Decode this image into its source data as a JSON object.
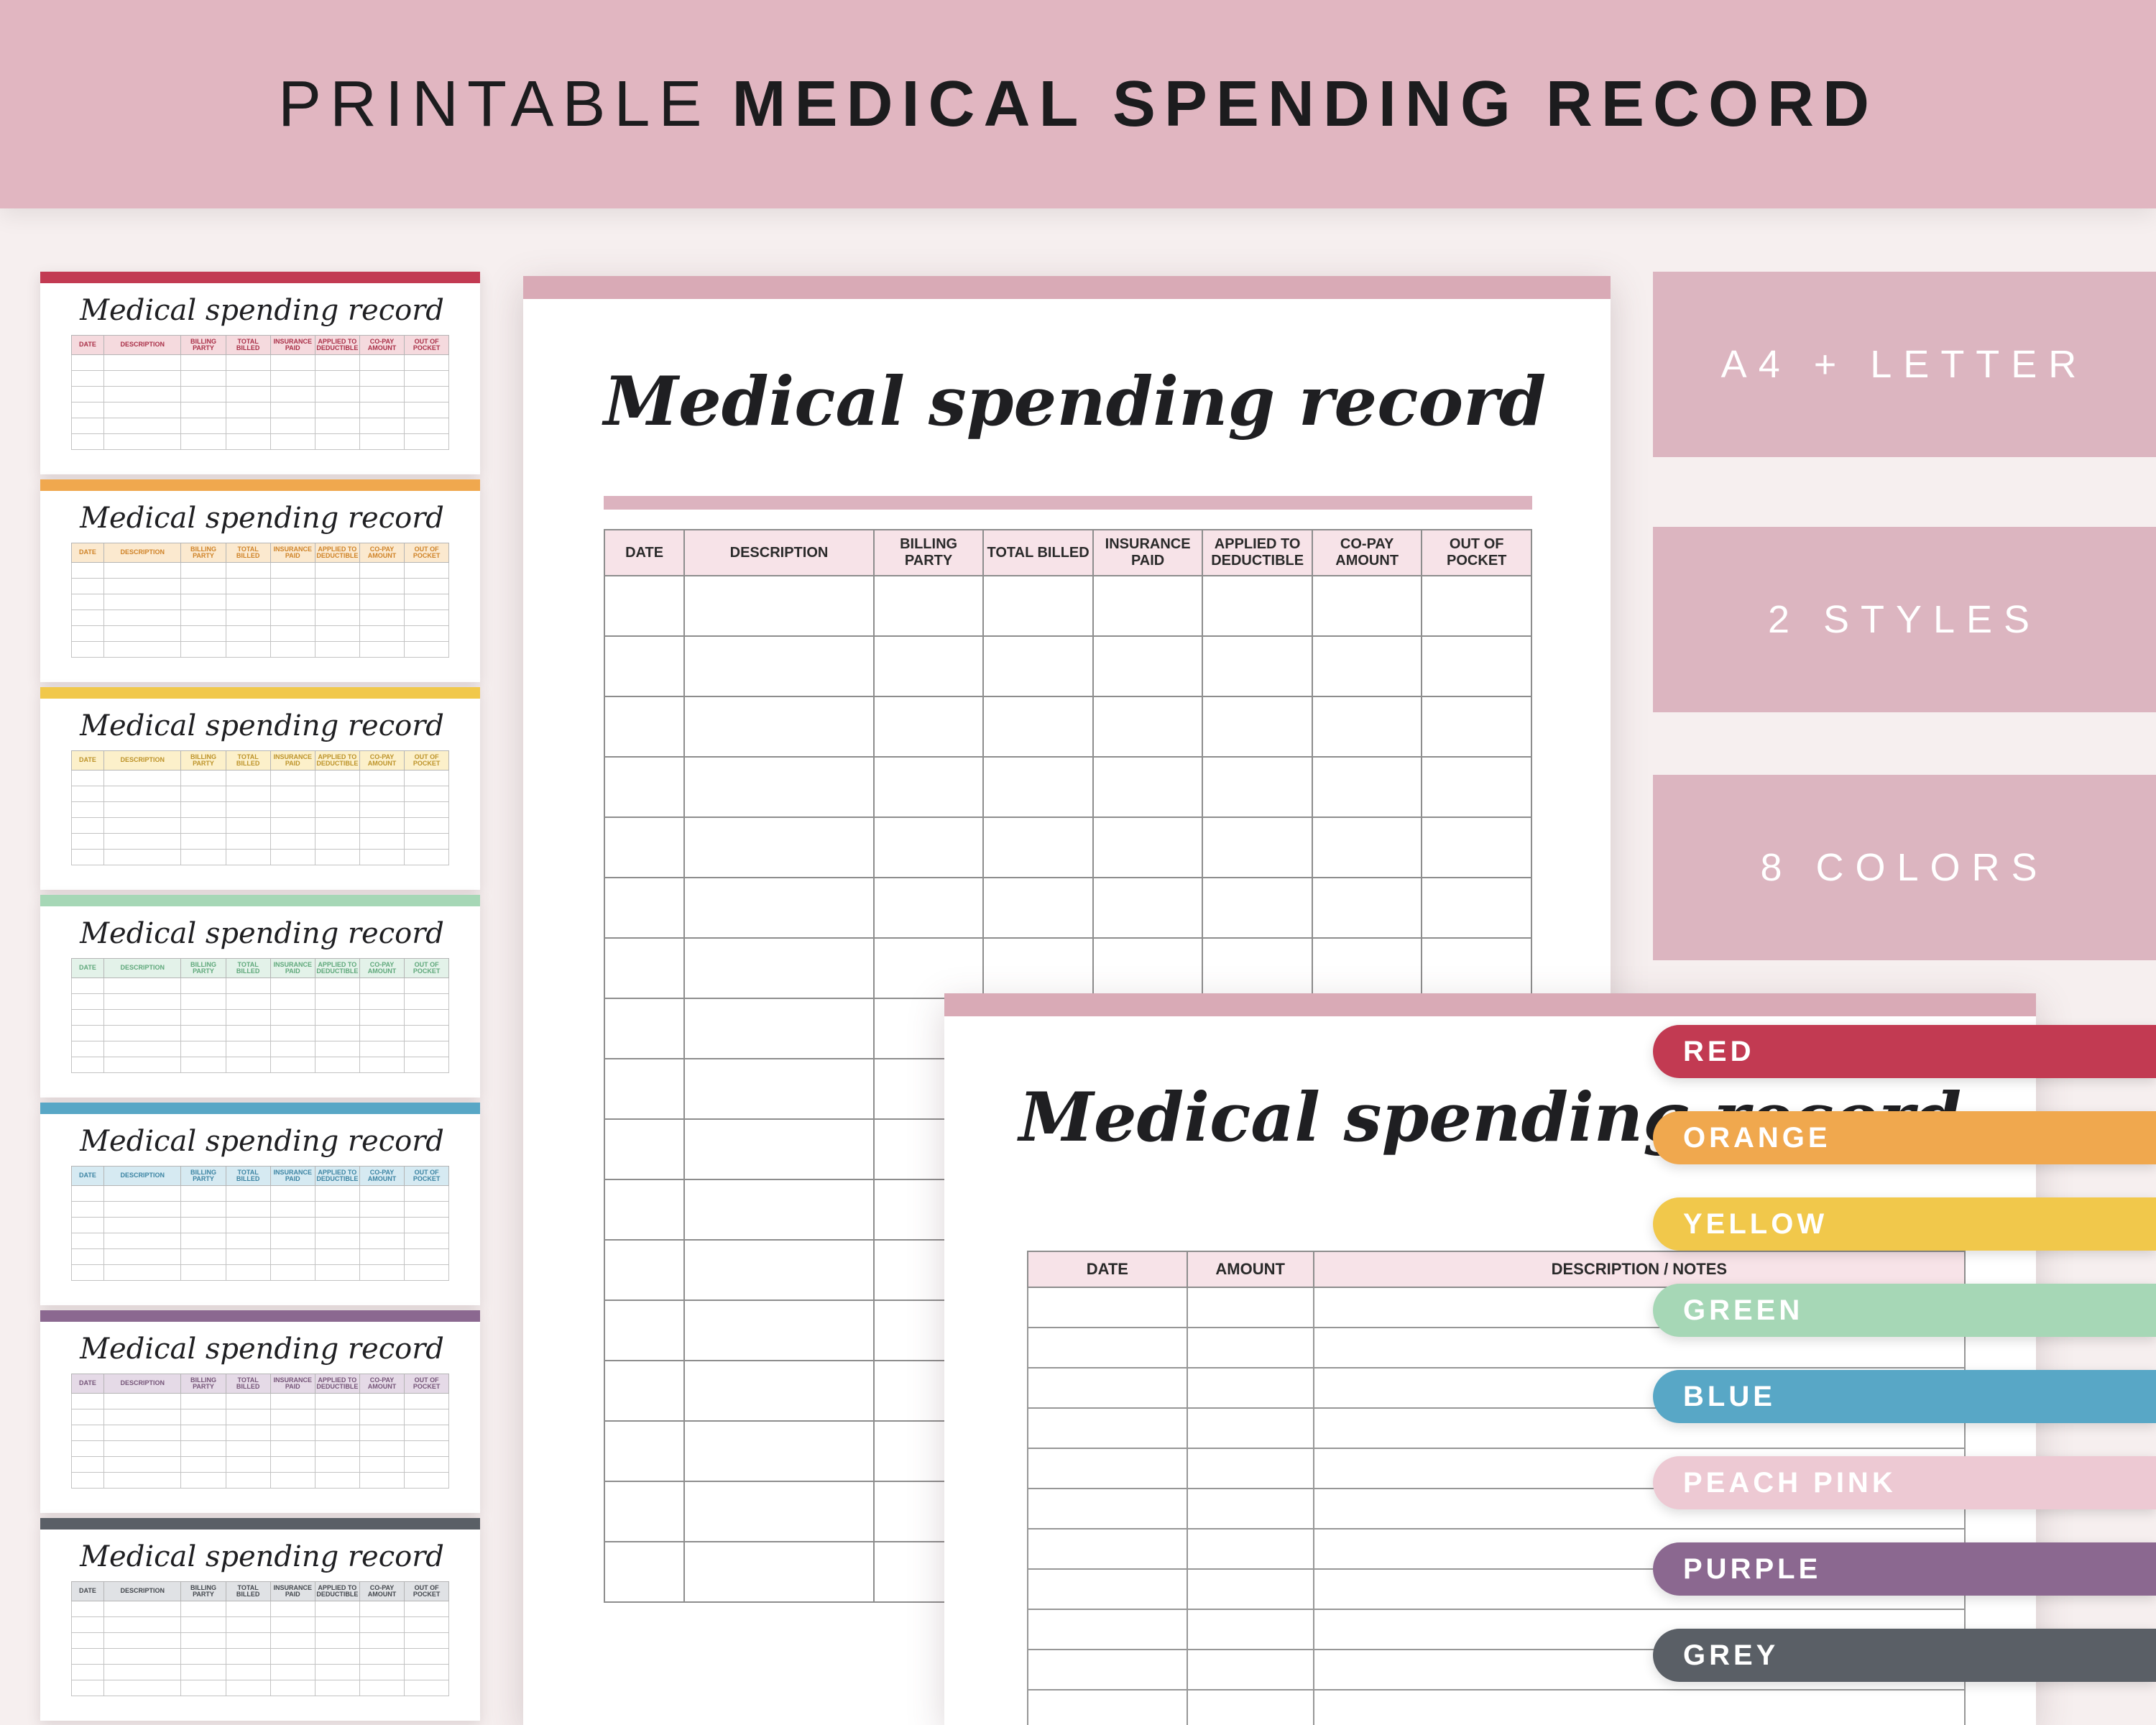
{
  "banner": {
    "prefix": "PRINTABLE",
    "title": "MEDICAL SPENDING RECORD"
  },
  "script_title": "Medical spending record",
  "style1_headers": [
    "DATE",
    "DESCRIPTION",
    "BILLING PARTY",
    "TOTAL BILLED",
    "INSURANCE PAID",
    "APPLIED TO DEDUCTIBLE",
    "CO-PAY AMOUNT",
    "OUT OF POCKET"
  ],
  "style2_headers": [
    "DATE",
    "AMOUNT",
    "DESCRIPTION / NOTES"
  ],
  "badges": [
    "A4 + LETTER",
    "2 STYLES",
    "8 COLORS"
  ],
  "swatches": [
    {
      "label": "RED",
      "hex": "#c23a52"
    },
    {
      "label": "ORANGE",
      "hex": "#f0a84e"
    },
    {
      "label": "YELLOW",
      "hex": "#f1c84b"
    },
    {
      "label": "GREEN",
      "hex": "#a6d7b6"
    },
    {
      "label": "BLUE",
      "hex": "#58a7c6"
    },
    {
      "label": "PEACH PINK",
      "hex": "#edc9d3"
    },
    {
      "label": "PURPLE",
      "hex": "#8b6890"
    },
    {
      "label": "GREY",
      "hex": "#5a5f66"
    }
  ],
  "thumbnails": [
    {
      "id": "red",
      "color": "#c23a52",
      "tint": "#f5dade",
      "text": "#a92f47"
    },
    {
      "id": "orange",
      "color": "#f0a84e",
      "tint": "#fbe9cf",
      "text": "#cf8328"
    },
    {
      "id": "yellow",
      "color": "#f1c84b",
      "tint": "#fcf0ca",
      "text": "#bd932a"
    },
    {
      "id": "green",
      "color": "#a6d7b6",
      "tint": "#e3f2e9",
      "text": "#5fa87b"
    },
    {
      "id": "blue",
      "color": "#58a7c6",
      "tint": "#d6eaf2",
      "text": "#3c84a3"
    },
    {
      "id": "purple",
      "color": "#8b6890",
      "tint": "#e5dae7",
      "text": "#755578"
    },
    {
      "id": "grey",
      "color": "#5a5f66",
      "tint": "#e0e2e5",
      "text": "#44484e"
    }
  ],
  "theme": {
    "bg": "#f6efef",
    "banner_pink": "#e1b6c1",
    "badge_pink": "#dcb5c0",
    "bar_pink": "#d9aab6",
    "underline_pink": "#dcb3bf",
    "header_tint": "#f7e3e8",
    "ink": "#1c1c1e"
  }
}
